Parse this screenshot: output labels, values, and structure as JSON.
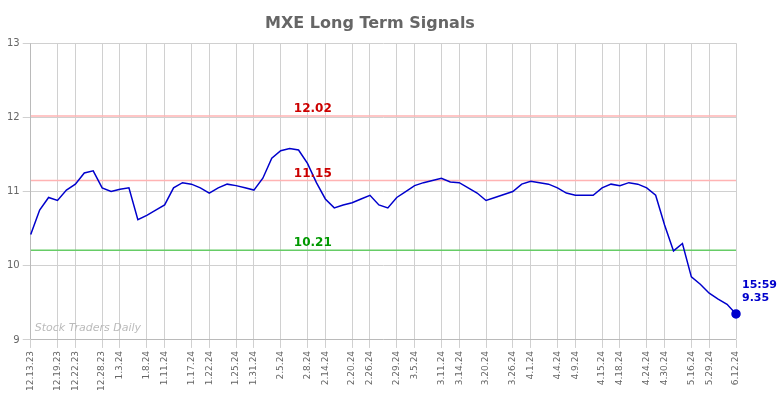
{
  "chart_data": {
    "type": "line",
    "title": "MXE Long Term Signals",
    "categories": [
      "12.13.23",
      null,
      null,
      "12.19.23",
      null,
      "12.22.23",
      null,
      null,
      "12.28.23",
      null,
      "1.3.24",
      null,
      null,
      "1.8.24",
      null,
      "1.11.24",
      null,
      null,
      "1.17.24",
      null,
      "1.22.24",
      null,
      null,
      "1.25.24",
      null,
      "1.31.24",
      null,
      null,
      "2.5.24",
      null,
      null,
      "2.8.24",
      null,
      "2.14.24",
      null,
      null,
      "2.20.24",
      null,
      "2.26.24",
      null,
      null,
      "2.29.24",
      null,
      "3.5.24",
      null,
      null,
      "3.11.24",
      null,
      "3.14.24",
      null,
      null,
      "3.20.24",
      null,
      null,
      "3.26.24",
      null,
      "4.1.24",
      null,
      null,
      "4.4.24",
      null,
      "4.9.24",
      null,
      null,
      "4.15.24",
      null,
      "4.18.24",
      null,
      null,
      "4.24.24",
      null,
      "4.30.24",
      null,
      null,
      "5.16.24",
      null,
      "5.29.24",
      null,
      null,
      "6.12.24"
    ],
    "values": [
      10.42,
      10.75,
      10.92,
      10.88,
      11.02,
      11.1,
      11.25,
      11.28,
      11.05,
      11.0,
      11.03,
      11.05,
      10.62,
      10.68,
      10.75,
      10.82,
      11.05,
      11.12,
      11.1,
      11.05,
      10.98,
      11.05,
      11.1,
      11.08,
      11.05,
      11.02,
      11.18,
      11.45,
      11.55,
      11.58,
      11.56,
      11.38,
      11.12,
      10.9,
      10.78,
      10.82,
      10.85,
      10.9,
      10.95,
      10.82,
      10.78,
      10.92,
      11.0,
      11.08,
      11.12,
      11.15,
      11.18,
      11.13,
      11.12,
      11.05,
      10.98,
      10.88,
      10.92,
      10.96,
      11.0,
      11.1,
      11.14,
      11.12,
      11.1,
      11.05,
      10.98,
      10.95,
      10.95,
      10.95,
      11.05,
      11.1,
      11.08,
      11.12,
      11.1,
      11.05,
      10.95,
      10.55,
      10.2,
      10.3,
      9.85,
      9.75,
      9.63,
      9.55,
      9.48,
      9.35
    ],
    "color": "#0000cc",
    "reference_lines": [
      {
        "value": 12.02,
        "label": "12.02",
        "color": "#ffb3b3",
        "text_color": "#cc0000"
      },
      {
        "value": 11.15,
        "label": "11.15",
        "color": "#ffb3b3",
        "text_color": "#cc0000"
      },
      {
        "value": 10.21,
        "label": "10.21",
        "color": "#66cc66",
        "text_color": "#009900"
      }
    ],
    "last_point": {
      "label": [
        "15:59",
        "9.35"
      ],
      "marker": "circle",
      "color": "#0000cc"
    },
    "watermark": "Stock Traders Daily",
    "watermark_color": "#bbbbbb",
    "ylim": [
      9,
      13
    ],
    "yticks": [
      9,
      10,
      11,
      12,
      13
    ],
    "grid": true,
    "grid_color": "#d0d0d0"
  }
}
